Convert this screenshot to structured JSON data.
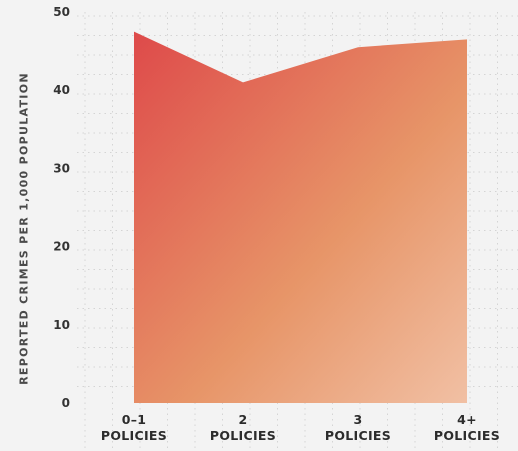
{
  "chart_data": {
    "type": "area",
    "title": "",
    "xlabel": "",
    "ylabel": "REPORTED CRIMES PER 1,000 POPULATION",
    "categories": [
      [
        "0–1",
        "POLICIES"
      ],
      [
        "2",
        "POLICIES"
      ],
      [
        "3",
        "POLICIES"
      ],
      [
        "4+",
        "POLICIES"
      ]
    ],
    "values": [
      47.5,
      41,
      45.5,
      46.5
    ],
    "ylim": [
      0,
      50
    ],
    "yticks": [
      0,
      10,
      20,
      30,
      40,
      50
    ],
    "grid": true,
    "legend": "none",
    "colors": {
      "gradient_start": "#de4a4a",
      "gradient_mid": "#e79568",
      "gradient_end": "#f1c0a4",
      "grid": "#d4d4d4",
      "background": "#f3f3f3"
    }
  }
}
